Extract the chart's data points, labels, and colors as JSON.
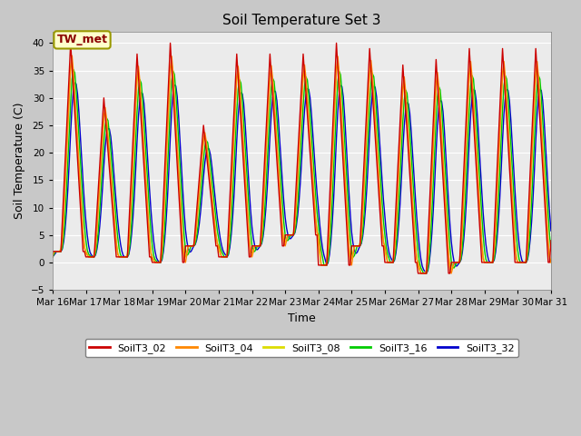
{
  "title": "Soil Temperature Set 3",
  "xlabel": "Time",
  "ylabel": "Soil Temperature (C)",
  "ylim": [
    -5,
    42
  ],
  "yticks": [
    -5,
    0,
    5,
    10,
    15,
    20,
    25,
    30,
    35,
    40
  ],
  "xlim": [
    0,
    360
  ],
  "xtick_positions": [
    0,
    24,
    48,
    72,
    96,
    120,
    144,
    168,
    192,
    216,
    240,
    264,
    288,
    312,
    336,
    360
  ],
  "xtick_labels": [
    "Mar 16",
    "Mar 17",
    "Mar 18",
    "Mar 19",
    "Mar 20",
    "Mar 21",
    "Mar 22",
    "Mar 23",
    "Mar 24",
    "Mar 25",
    "Mar 26",
    "Mar 27",
    "Mar 28",
    "Mar 29",
    "Mar 30",
    "Mar 31"
  ],
  "series_colors": [
    "#cc0000",
    "#ff8800",
    "#dddd00",
    "#00cc00",
    "#0000cc"
  ],
  "series_labels": [
    "SoilT3_02",
    "SoilT3_04",
    "SoilT3_08",
    "SoilT3_16",
    "SoilT3_32"
  ],
  "annotation_text": "TW_met",
  "plot_bg_color": "#ebebeb",
  "fig_bg_color": "#c8c8c8",
  "linewidth": 1.0,
  "title_fontsize": 11,
  "label_fontsize": 9,
  "tick_fontsize": 7.5,
  "legend_fontsize": 8
}
